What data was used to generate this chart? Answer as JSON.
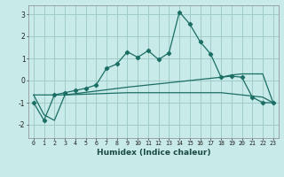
{
  "xlabel": "Humidex (Indice chaleur)",
  "background_color": "#c8eae8",
  "grid_color": "#a0ccc8",
  "line_color": "#1a6e64",
  "xlim": [
    -0.5,
    23.5
  ],
  "ylim": [
    -2.6,
    3.4
  ],
  "yticks": [
    -2,
    -1,
    0,
    1,
    2,
    3
  ],
  "xticks": [
    0,
    1,
    2,
    3,
    4,
    5,
    6,
    7,
    8,
    9,
    10,
    11,
    12,
    13,
    14,
    15,
    16,
    17,
    18,
    19,
    20,
    21,
    22,
    23
  ],
  "curve1_x": [
    0,
    1,
    2,
    3,
    4,
    5,
    6,
    7,
    8,
    9,
    10,
    11,
    12,
    13,
    14,
    15,
    16,
    17,
    18,
    19,
    20,
    21,
    22,
    23
  ],
  "curve1_y": [
    -1.0,
    -1.8,
    -0.65,
    -0.55,
    -0.45,
    -0.35,
    -0.2,
    0.55,
    0.75,
    1.3,
    1.05,
    1.35,
    0.95,
    1.25,
    3.1,
    2.55,
    1.75,
    1.2,
    0.15,
    0.2,
    0.15,
    -0.75,
    -1.0,
    -1.0
  ],
  "curve2_x": [
    0,
    3,
    9,
    14,
    18,
    20,
    22,
    23
  ],
  "curve2_y": [
    -0.65,
    -0.65,
    -0.55,
    -0.55,
    -0.55,
    -0.65,
    -0.75,
    -1.0
  ],
  "curve3_x": [
    0,
    1,
    2,
    3,
    9,
    14,
    18,
    19,
    20,
    21,
    22,
    23
  ],
  "curve3_y": [
    -0.65,
    -1.55,
    -1.8,
    -0.65,
    -0.3,
    -0.05,
    0.15,
    0.25,
    0.3,
    0.3,
    0.3,
    -1.0
  ]
}
